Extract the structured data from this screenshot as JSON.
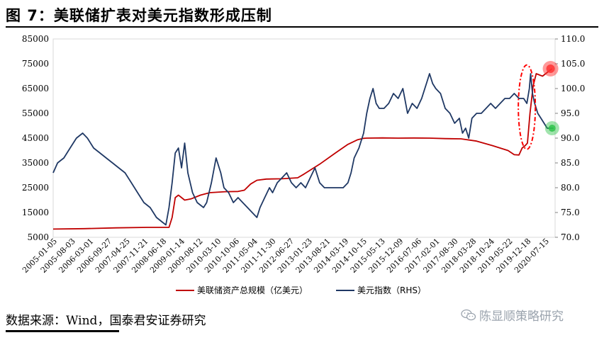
{
  "title": "图 7：美联储扩表对美元指数形成压制",
  "source": "数据来源：Wind，国泰君安证券研究",
  "watermark": "陈显顺策略研究",
  "icons": {
    "watermark": "wechat-icon"
  },
  "chart_data": {
    "type": "line",
    "x_tick_labels": [
      "2005-01-05",
      "2005-08-03",
      "2006-03-01",
      "2006-09-27",
      "2007-04-25",
      "2007-11-21",
      "2008-06-18",
      "2009-01-14",
      "2009-08-12",
      "2010-03-10",
      "2010-10-06",
      "2011-05-04",
      "2011-11-30",
      "2012-06-27",
      "2013-01-23",
      "2013-08-21",
      "2014-03-19",
      "2014-10-15",
      "2015-05-13",
      "2015-12-09",
      "2016-07-06",
      "2017-02-01",
      "2017-08-30",
      "2018-03-28",
      "2018-10-24",
      "2019-05-22",
      "2019-12-18",
      "2020-07-15"
    ],
    "y_left": {
      "ticks": [
        5000,
        15000,
        25000,
        35000,
        45000,
        55000,
        65000,
        75000,
        85000
      ],
      "ylim": [
        5000,
        85000
      ]
    },
    "y_right": {
      "ticks": [
        "70.0",
        "75.0",
        "80.0",
        "85.0",
        "90.0",
        "95.0",
        "100.0",
        "105.0",
        "110.0"
      ],
      "ylim": [
        70,
        110
      ]
    },
    "legend_position": "bottom",
    "series": [
      {
        "name": "美联储资产总规模（亿美元）",
        "axis": "left",
        "color": "#c00000",
        "x": [
          2005.01,
          2006.0,
          2007.0,
          2008.0,
          2008.7,
          2008.8,
          2008.9,
          2009.0,
          2009.2,
          2009.4,
          2009.7,
          2010.0,
          2010.5,
          2010.9,
          2011.1,
          2011.3,
          2011.5,
          2011.8,
          2012.3,
          2012.8,
          2013.0,
          2013.5,
          2014.0,
          2014.4,
          2014.7,
          2014.9,
          2015.0,
          2015.5,
          2016.0,
          2016.5,
          2017.0,
          2017.5,
          2018.0,
          2018.5,
          2019.0,
          2019.5,
          2019.7,
          2019.85,
          2019.95,
          2020.05,
          2020.12,
          2020.2,
          2020.3,
          2020.4,
          2020.6,
          2020.9
        ],
        "values": [
          8300,
          8500,
          8800,
          9000,
          9000,
          13000,
          21000,
          22000,
          20000,
          20500,
          22000,
          23000,
          23400,
          23500,
          24000,
          26500,
          28000,
          28500,
          28600,
          29000,
          30500,
          34500,
          39000,
          42500,
          44300,
          44900,
          45000,
          45100,
          45000,
          45050,
          45000,
          44800,
          44700,
          43800,
          42000,
          40000,
          38300,
          38200,
          41000,
          42000,
          43000,
          55000,
          66000,
          71000,
          70000,
          73000
        ]
      },
      {
        "name": "美元指数（RHS）",
        "axis": "right",
        "color": "#1f3864",
        "x": [
          2005.01,
          2005.15,
          2005.35,
          2005.55,
          2005.75,
          2005.95,
          2006.1,
          2006.3,
          2006.5,
          2006.7,
          2006.9,
          2007.1,
          2007.3,
          2007.5,
          2007.7,
          2007.9,
          2008.1,
          2008.3,
          2008.5,
          2008.6,
          2008.7,
          2008.8,
          2008.9,
          2009.0,
          2009.1,
          2009.2,
          2009.3,
          2009.45,
          2009.6,
          2009.8,
          2009.9,
          2010.05,
          2010.2,
          2010.35,
          2010.45,
          2010.6,
          2010.75,
          2010.9,
          2011.05,
          2011.2,
          2011.35,
          2011.5,
          2011.6,
          2011.75,
          2011.9,
          2012.0,
          2012.15,
          2012.3,
          2012.45,
          2012.6,
          2012.75,
          2012.9,
          2013.05,
          2013.2,
          2013.35,
          2013.5,
          2013.65,
          2013.8,
          2013.95,
          2014.1,
          2014.25,
          2014.4,
          2014.5,
          2014.6,
          2014.75,
          2014.9,
          2015.0,
          2015.1,
          2015.2,
          2015.3,
          2015.4,
          2015.55,
          2015.7,
          2015.85,
          2016.0,
          2016.15,
          2016.3,
          2016.45,
          2016.6,
          2016.75,
          2016.9,
          2017.0,
          2017.1,
          2017.2,
          2017.35,
          2017.5,
          2017.65,
          2017.8,
          2017.95,
          2018.05,
          2018.15,
          2018.25,
          2018.35,
          2018.5,
          2018.65,
          2018.8,
          2018.95,
          2019.1,
          2019.25,
          2019.4,
          2019.55,
          2019.7,
          2019.85,
          2020.0,
          2020.1,
          2020.18,
          2020.22,
          2020.28,
          2020.35,
          2020.45,
          2020.55,
          2020.65,
          2020.75,
          2020.85,
          2020.95
        ],
        "values": [
          83,
          85,
          86,
          88,
          90,
          91,
          90,
          88,
          87,
          86,
          85,
          84,
          83,
          81,
          79,
          77,
          76,
          74,
          73,
          72.5,
          76,
          81,
          87,
          88,
          84,
          89,
          83,
          79,
          77,
          76,
          77,
          81,
          86,
          83,
          80,
          79,
          77,
          78,
          77,
          76,
          75,
          74,
          76,
          78,
          80,
          79,
          81,
          82,
          83,
          81,
          80,
          81,
          80,
          82,
          84,
          81,
          80,
          80,
          80,
          80,
          80,
          81,
          83,
          86,
          88,
          91,
          95,
          98,
          100,
          97,
          96,
          96,
          97,
          99,
          98,
          100,
          95,
          97,
          96,
          98,
          101,
          103,
          101,
          100,
          99,
          96,
          95,
          93,
          94,
          91,
          92,
          90,
          94,
          95,
          95,
          96,
          97,
          96,
          97,
          98,
          98,
          99,
          98,
          98,
          97,
          100,
          103,
          99,
          97,
          95,
          94,
          93,
          92,
          92,
          92
        ]
      }
    ],
    "annotations": [
      {
        "type": "dashed-ellipse",
        "color": "#ff0000"
      },
      {
        "type": "marker-dot",
        "color": "#ff3333",
        "series": "美联储资产总规模（亿美元）"
      },
      {
        "type": "marker-dot",
        "color": "#2ec44a",
        "series": "美元指数（RHS）"
      }
    ]
  }
}
